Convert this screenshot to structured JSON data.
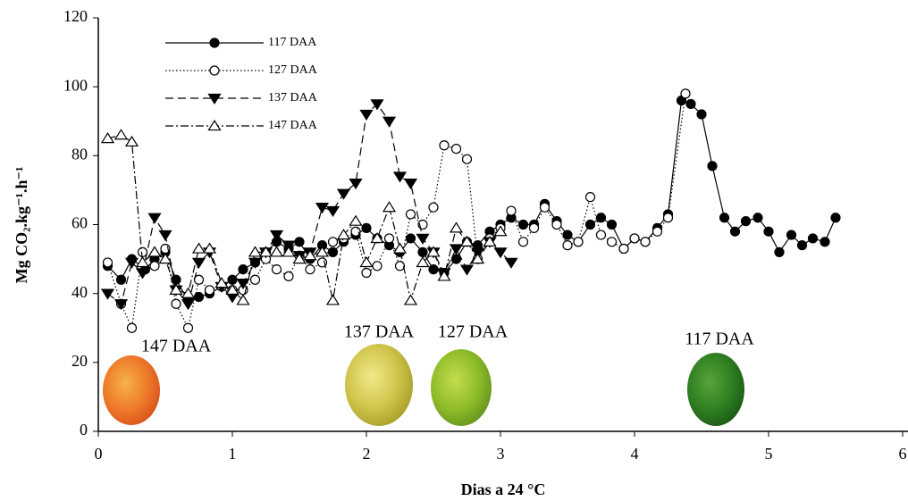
{
  "chart_data": {
    "type": "line",
    "xlabel": "Dias a 24 °C",
    "ylabel": "Mg CO₂.kg⁻¹.h⁻¹",
    "xlim": [
      0,
      6
    ],
    "xticks": [
      0,
      1,
      2,
      3,
      4,
      5,
      6
    ],
    "ylim": [
      0,
      120
    ],
    "yticks": [
      0,
      20,
      40,
      60,
      80,
      100,
      120
    ],
    "legend": "upper-left",
    "annotations": [
      "147 DAA",
      "137 DAA",
      "127 DAA",
      "117 DAA"
    ],
    "series": [
      {
        "name": "117 DAA",
        "color": "#000000",
        "linestyle": "solid",
        "marker": "circle-filled",
        "x": [
          0.07,
          0.17,
          0.25,
          0.35,
          0.42,
          0.5,
          0.58,
          0.67,
          0.75,
          0.83,
          0.92,
          1.0,
          1.08,
          1.17,
          1.25,
          1.33,
          1.42,
          1.5,
          1.58,
          1.67,
          1.75,
          1.83,
          1.92,
          2.0,
          2.08,
          2.17,
          2.25,
          2.33,
          2.42,
          2.5,
          2.58,
          2.67,
          2.75,
          2.83,
          2.92,
          3.0,
          3.08,
          3.17,
          3.25,
          3.33,
          3.42,
          3.5,
          3.58,
          3.67,
          3.75,
          3.83,
          3.92,
          4.0,
          4.08,
          4.17,
          4.25,
          4.35,
          4.42,
          4.5,
          4.58,
          4.67,
          4.75,
          4.83,
          4.92,
          5.0,
          5.08,
          5.17,
          5.25,
          5.33,
          5.42,
          5.5
        ],
        "values": [
          48,
          44,
          50,
          47,
          50,
          52,
          44,
          38,
          39,
          40,
          42,
          44,
          47,
          49,
          52,
          55,
          53,
          55,
          50,
          54,
          52,
          55,
          57,
          59,
          56,
          54,
          52,
          56,
          52,
          47,
          46,
          50,
          55,
          54,
          58,
          60,
          62,
          60,
          60,
          66,
          61,
          57,
          55,
          60,
          62,
          60,
          53,
          56,
          55,
          59,
          63,
          96,
          95,
          92,
          77,
          62,
          58,
          61,
          62,
          58,
          52,
          57,
          54,
          56,
          55,
          62
        ]
      },
      {
        "name": "127 DAA",
        "color": "#000000",
        "linestyle": "dotted",
        "marker": "circle-open",
        "x": [
          0.07,
          0.17,
          0.25,
          0.33,
          0.42,
          0.5,
          0.58,
          0.67,
          0.75,
          0.83,
          0.92,
          1.0,
          1.08,
          1.17,
          1.25,
          1.33,
          1.42,
          1.5,
          1.58,
          1.67,
          1.75,
          1.83,
          1.92,
          2.0,
          2.08,
          2.17,
          2.25,
          2.33,
          2.42,
          2.5,
          2.58,
          2.67,
          2.75,
          2.83,
          2.92,
          3.0,
          3.08,
          3.17,
          3.25,
          3.33,
          3.42,
          3.5,
          3.58,
          3.67,
          3.75,
          3.83,
          3.92,
          4.0,
          4.08,
          4.17,
          4.25,
          4.38
        ],
        "values": [
          49,
          37,
          30,
          52,
          48,
          53,
          37,
          30,
          44,
          41,
          42,
          41,
          41,
          44,
          50,
          47,
          45,
          51,
          47,
          49,
          55,
          56,
          58,
          46,
          48,
          56,
          48,
          63,
          60,
          65,
          83,
          82,
          79,
          50,
          56,
          59,
          64,
          55,
          59,
          65,
          60,
          54,
          55,
          68,
          57,
          55,
          53,
          56,
          55,
          58,
          62,
          98
        ]
      },
      {
        "name": "137 DAA",
        "color": "#000000",
        "linestyle": "dashed",
        "marker": "triangle-down-filled",
        "x": [
          0.07,
          0.17,
          0.25,
          0.33,
          0.42,
          0.5,
          0.58,
          0.67,
          0.75,
          0.83,
          0.92,
          1.0,
          1.08,
          1.17,
          1.25,
          1.33,
          1.42,
          1.5,
          1.58,
          1.67,
          1.75,
          1.83,
          1.92,
          2.0,
          2.08,
          2.17,
          2.25,
          2.33,
          2.42,
          2.5,
          2.58,
          2.67,
          2.75,
          2.83,
          2.92,
          3.0,
          3.08
        ],
        "values": [
          40,
          37,
          49,
          46,
          62,
          57,
          41,
          37,
          49,
          52,
          42,
          39,
          43,
          49,
          52,
          57,
          54,
          51,
          52,
          65,
          64,
          69,
          72,
          92,
          95,
          90,
          74,
          72,
          56,
          52,
          46,
          53,
          47,
          52,
          55,
          52,
          49
        ]
      },
      {
        "name": "147 DAA",
        "color": "#000000",
        "linestyle": "dashdot",
        "marker": "triangle-up-open",
        "x": [
          0.07,
          0.17,
          0.25,
          0.33,
          0.42,
          0.5,
          0.58,
          0.67,
          0.75,
          0.83,
          0.92,
          1.0,
          1.08,
          1.17,
          1.25,
          1.33,
          1.42,
          1.5,
          1.58,
          1.67,
          1.75,
          1.83,
          1.92,
          2.0,
          2.08,
          2.17,
          2.25,
          2.33,
          2.42,
          2.5,
          2.58,
          2.67,
          2.75,
          2.83,
          2.92,
          3.0
        ],
        "values": [
          85,
          86,
          84,
          49,
          52,
          50,
          41,
          40,
          53,
          53,
          43,
          41,
          38,
          52,
          52,
          52,
          52,
          50,
          51,
          52,
          38,
          57,
          61,
          49,
          56,
          65,
          53,
          38,
          49,
          52,
          45,
          59,
          55,
          50,
          55,
          58
        ]
      }
    ]
  }
}
